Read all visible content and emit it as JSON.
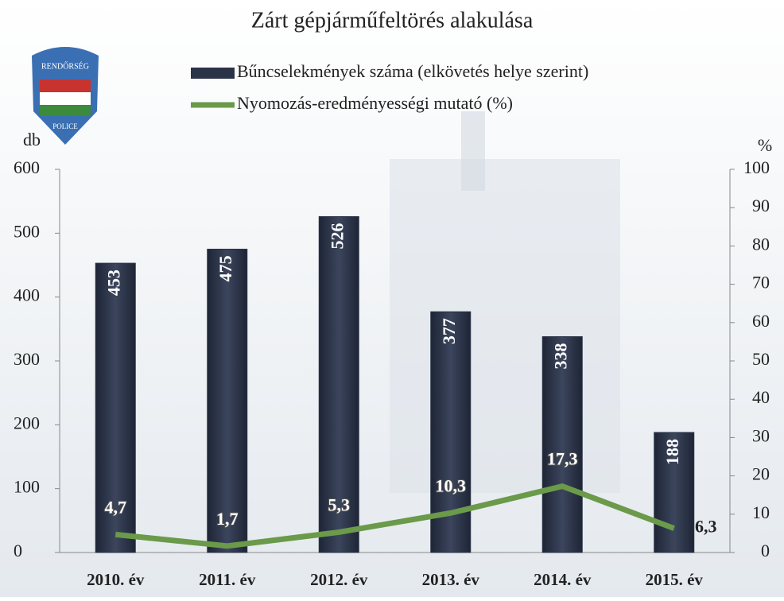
{
  "chart_data": {
    "type": "bar",
    "title": "Zárt gépjárműfeltörés alakulása",
    "y_label": "db",
    "y2_label": "%",
    "categories": [
      "2010. év",
      "2011. év",
      "2012. év",
      "2013. év",
      "2014. év",
      "2015. év"
    ],
    "series": [
      {
        "name": "Bűncselekmények száma (elkövetés helye szerint)",
        "color": "#2b3347",
        "values": [
          453,
          475,
          526,
          377,
          338,
          188
        ]
      },
      {
        "name": "Nyomozás-eredményességi mutató (%)",
        "color": "#6a9a4a",
        "type": "line",
        "axis": "y2",
        "values": [
          4.7,
          1.7,
          5.3,
          10.3,
          17.3,
          6.3
        ],
        "value_labels": [
          "4,7",
          "1,7",
          "5,3",
          "10,3",
          "17,3",
          "6,3"
        ]
      }
    ],
    "ylim": [
      0,
      600
    ],
    "yticks": [
      0,
      100,
      200,
      300,
      400,
      500,
      600
    ],
    "y2lim": [
      0,
      100
    ],
    "y2ticks": [
      0,
      10,
      20,
      30,
      40,
      50,
      60,
      70,
      80,
      90,
      100
    ],
    "legend": "top"
  },
  "logo": [
    "RENDŐRSÉG",
    "POLICE"
  ]
}
